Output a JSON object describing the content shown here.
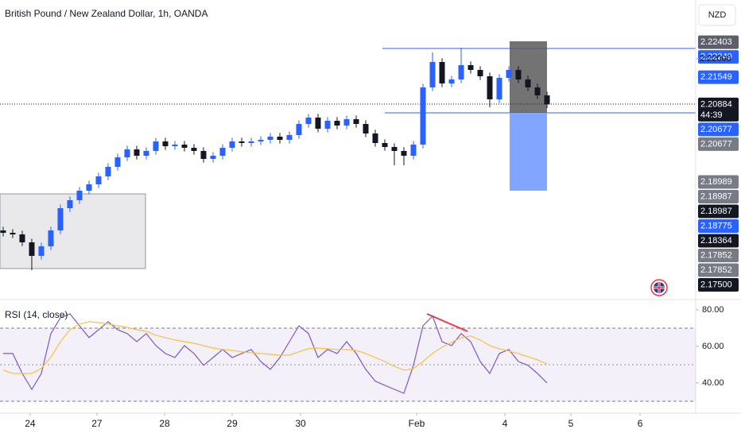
{
  "chart_data": [
    {
      "type": "candlestick",
      "title": "British Pound / New Zealand Dollar, 1h, OANDA",
      "currency": "NZD",
      "countdown": "44:39",
      "up_color": "#2962ff",
      "down_color": "#131722",
      "xlim": [
        -0.33,
        72.58
      ],
      "ylim": [
        2.16156,
        2.23433
      ],
      "xticks": [
        {
          "value": 2.83,
          "label": "24"
        },
        {
          "value": 9.83,
          "label": "27"
        },
        {
          "value": 16.92,
          "label": "28"
        },
        {
          "value": 24,
          "label": "29"
        },
        {
          "value": 31.17,
          "label": "30"
        },
        {
          "value": 43.33,
          "label": "Feb"
        },
        {
          "value": 52.58,
          "label": "4"
        },
        {
          "value": 59.5,
          "label": "5"
        },
        {
          "value": 66.75,
          "label": "6"
        }
      ],
      "price_labels": [
        {
          "value": 2.22403,
          "kind": "#5d606b"
        },
        {
          "value": 2.22249,
          "kind": "#2962ff"
        },
        {
          "value": 2.22,
          "label": "2.22000",
          "kind": "plain"
        },
        {
          "value": 2.21549,
          "kind": "#2962ff"
        },
        {
          "value": 2.20884,
          "kind": "#131722",
          "current": true
        },
        {
          "value": 2.20677,
          "kind": "#2962ff"
        },
        {
          "value": 2.20677,
          "kind": "#787b86"
        },
        {
          "value": 2.18989,
          "kind": "#787b86"
        },
        {
          "value": 2.18987,
          "kind": "#787b86"
        },
        {
          "value": 2.18987,
          "kind": "#131722"
        },
        {
          "value": 2.18775,
          "kind": "#2962ff"
        },
        {
          "value": 2.18364,
          "kind": "#131722"
        },
        {
          "value": 2.17852,
          "kind": "#787b86"
        },
        {
          "value": 2.17852,
          "kind": "#787b86"
        },
        {
          "value": 2.175,
          "label": "2.17500",
          "kind": "#131722"
        }
      ],
      "open": [
        2.17805,
        2.17747,
        2.17708,
        2.17514,
        2.17184,
        2.17417,
        2.17805,
        2.18348,
        2.18543,
        2.18775,
        2.18931,
        2.19125,
        2.19358,
        2.1959,
        2.19784,
        2.19629,
        2.19746,
        2.19979,
        2.19862,
        2.19901,
        2.19823,
        2.19746,
        2.19552,
        2.19629,
        2.19823,
        2.19979,
        2.1994,
        2.19979,
        2.20017,
        2.20095,
        2.20017,
        2.20134,
        2.20405,
        2.20561,
        2.20289,
        2.20483,
        2.20367,
        2.20522,
        2.20405,
        2.20173,
        2.1994,
        2.19843,
        2.19746,
        2.19629,
        2.19901,
        2.21298,
        2.21919,
        2.21395,
        2.21492,
        2.21842,
        2.21725,
        2.2157,
        2.21007,
        2.21531,
        2.21725,
        2.21492,
        2.21298,
        2.21104
      ],
      "high": [
        2.17895,
        2.17837,
        2.17798,
        2.17604,
        2.17507,
        2.17895,
        2.18438,
        2.18633,
        2.18865,
        2.19021,
        2.19215,
        2.19448,
        2.1968,
        2.19874,
        2.19874,
        2.19836,
        2.20069,
        2.20069,
        2.19991,
        2.19991,
        2.19913,
        2.19836,
        2.19719,
        2.19913,
        2.20069,
        2.20069,
        2.20069,
        2.20107,
        2.20185,
        2.20185,
        2.20224,
        2.20495,
        2.20651,
        2.20651,
        2.20573,
        2.20573,
        2.20612,
        2.20612,
        2.20495,
        2.20263,
        2.2003,
        2.19933,
        2.19836,
        2.19991,
        2.21388,
        2.22152,
        2.22009,
        2.21582,
        2.22268,
        2.21932,
        2.21815,
        2.2166,
        2.21621,
        2.21815,
        2.21815,
        2.21582,
        2.21388,
        2.21194
      ],
      "low": [
        2.17657,
        2.17618,
        2.17424,
        2.16835,
        2.17094,
        2.17327,
        2.17715,
        2.18258,
        2.18453,
        2.18685,
        2.18841,
        2.19035,
        2.19268,
        2.195,
        2.19539,
        2.19539,
        2.19656,
        2.19772,
        2.19772,
        2.19733,
        2.19656,
        2.19462,
        2.19462,
        2.19539,
        2.19733,
        2.1985,
        2.1985,
        2.19889,
        2.19927,
        2.19927,
        2.19927,
        2.20044,
        2.20315,
        2.20199,
        2.20199,
        2.20277,
        2.20277,
        2.20315,
        2.20083,
        2.1985,
        2.19753,
        2.19396,
        2.19396,
        2.19539,
        2.19811,
        2.21208,
        2.21305,
        2.21305,
        2.21402,
        2.21635,
        2.2148,
        2.20813,
        2.20917,
        2.21441,
        2.21402,
        2.21208,
        2.21014,
        2.20794
      ],
      "close": [
        2.17747,
        2.17708,
        2.17514,
        2.17184,
        2.17417,
        2.17805,
        2.18348,
        2.18543,
        2.18775,
        2.18931,
        2.19125,
        2.19358,
        2.1959,
        2.19784,
        2.19629,
        2.19746,
        2.19979,
        2.19862,
        2.19901,
        2.19823,
        2.19746,
        2.19552,
        2.19629,
        2.19823,
        2.19979,
        2.1994,
        2.19979,
        2.20017,
        2.20095,
        2.20017,
        2.20134,
        2.20405,
        2.20561,
        2.20289,
        2.20483,
        2.20367,
        2.20522,
        2.20405,
        2.20173,
        2.1994,
        2.19843,
        2.19746,
        2.19629,
        2.19901,
        2.21298,
        2.21919,
        2.21395,
        2.21492,
        2.21842,
        2.21725,
        2.2157,
        2.21007,
        2.21531,
        2.21725,
        2.21492,
        2.21298,
        2.21104,
        2.20884
      ]
    },
    {
      "type": "line",
      "label": "RSI (14, close)",
      "xlim": [
        -0.33,
        72.58
      ],
      "ylim": [
        24.3,
        85.2
      ],
      "yticks": [
        {
          "value": 80,
          "label": "80.00"
        },
        {
          "value": 60,
          "label": "60.00"
        },
        {
          "value": 40,
          "label": "40.00"
        }
      ],
      "series": [
        {
          "color": "#7e57c2",
          "values": [
            56.1,
            56.1,
            45.2,
            36.5,
            45.2,
            67.0,
            75.7,
            77.8,
            71.3,
            64.8,
            69.1,
            73.5,
            69.1,
            67.0,
            62.6,
            67.0,
            60.4,
            56.1,
            53.9,
            60.4,
            56.1,
            49.6,
            53.9,
            58.3,
            53.9,
            56.1,
            58.3,
            51.7,
            47.4,
            53.9,
            62.6,
            71.3,
            67.0,
            53.9,
            58.3,
            56.1,
            62.6,
            56.1,
            47.4,
            40.9,
            38.7,
            36.5,
            34.3,
            49.6,
            71.3,
            76.5,
            62.6,
            60.4,
            67.0,
            62.6,
            51.7,
            45.2,
            56.1,
            58.3,
            51.7,
            49.6,
            45.2,
            40.0
          ]
        },
        {
          "color": "#f5c242",
          "values": [
            47.0,
            45.2,
            45.2,
            45.2,
            48.0,
            54.0,
            62.6,
            69.1,
            72.2,
            73.5,
            73.0,
            72.2,
            71.3,
            70.4,
            69.1,
            68.3,
            66.1,
            64.8,
            63.5,
            62.6,
            61.7,
            60.4,
            59.1,
            58.3,
            57.8,
            57.0,
            56.5,
            56.1,
            55.6,
            55.2,
            55.2,
            57.0,
            58.7,
            59.1,
            58.7,
            58.3,
            58.3,
            57.8,
            56.1,
            53.9,
            51.7,
            49.1,
            47.0,
            47.8,
            51.7,
            56.1,
            59.6,
            62.2,
            64.8,
            65.7,
            63.5,
            60.4,
            58.7,
            57.4,
            56.1,
            54.3,
            52.6,
            50.4
          ]
        }
      ]
    }
  ]
}
